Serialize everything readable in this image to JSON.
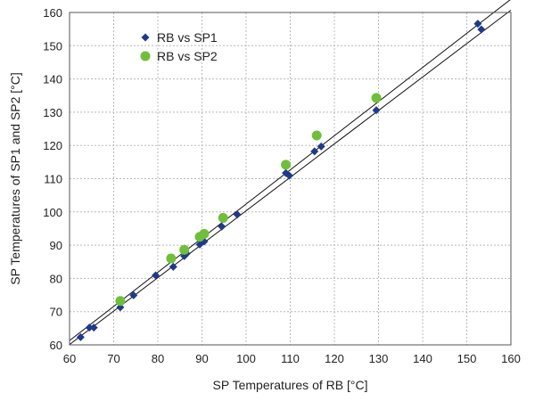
{
  "chart_data": {
    "type": "scatter",
    "title": "",
    "xlabel": "SP Temperatures of RB [°C]",
    "ylabel": "SP Temperatures of SP1 and SP2 [°C]",
    "xlim": [
      60,
      160
    ],
    "ylim": [
      60,
      160
    ],
    "xticks": [
      "60",
      "70",
      "80",
      "90",
      "100",
      "110",
      "120",
      "130",
      "140",
      "150",
      "160"
    ],
    "yticks": [
      "60",
      "70",
      "80",
      "90",
      "100",
      "110",
      "120",
      "130",
      "140",
      "150",
      "160"
    ],
    "grid": true,
    "legend_position": "top-left",
    "series": [
      {
        "name": "RB vs SP1",
        "marker": "diamond",
        "color": "#1f3a8a",
        "points": [
          [
            62.5,
            62.3
          ],
          [
            64.5,
            65.2
          ],
          [
            65.5,
            65.2
          ],
          [
            71.5,
            71.3
          ],
          [
            74.5,
            74.9
          ],
          [
            79.5,
            80.9
          ],
          [
            83.5,
            83.5
          ],
          [
            86.0,
            86.7
          ],
          [
            86.5,
            87.4
          ],
          [
            89.5,
            90.2
          ],
          [
            90.5,
            91.1
          ],
          [
            94.5,
            95.6
          ],
          [
            98.0,
            99.2
          ],
          [
            109.0,
            111.7
          ],
          [
            109.8,
            110.9
          ],
          [
            115.5,
            118.2
          ],
          [
            117.0,
            119.7
          ],
          [
            129.5,
            130.6
          ],
          [
            152.5,
            156.6
          ],
          [
            153.3,
            154.9
          ]
        ]
      },
      {
        "name": "RB vs SP2",
        "marker": "circle",
        "color": "#6fbf3a",
        "points": [
          [
            71.5,
            73.2
          ],
          [
            83.0,
            86.0
          ],
          [
            86.0,
            88.6
          ],
          [
            89.5,
            92.5
          ],
          [
            90.5,
            93.4
          ],
          [
            94.8,
            98.2
          ],
          [
            109.0,
            114.2
          ],
          [
            116.0,
            123.0
          ],
          [
            129.5,
            134.3
          ]
        ]
      }
    ],
    "trendlines": [
      {
        "series": "RB vs SP1",
        "from": [
          60,
          60.1
        ],
        "to": [
          160,
          160.7
        ]
      },
      {
        "series": "RB vs SP2",
        "from": [
          60,
          61.3
        ],
        "to": [
          160,
          164.0
        ]
      }
    ]
  }
}
